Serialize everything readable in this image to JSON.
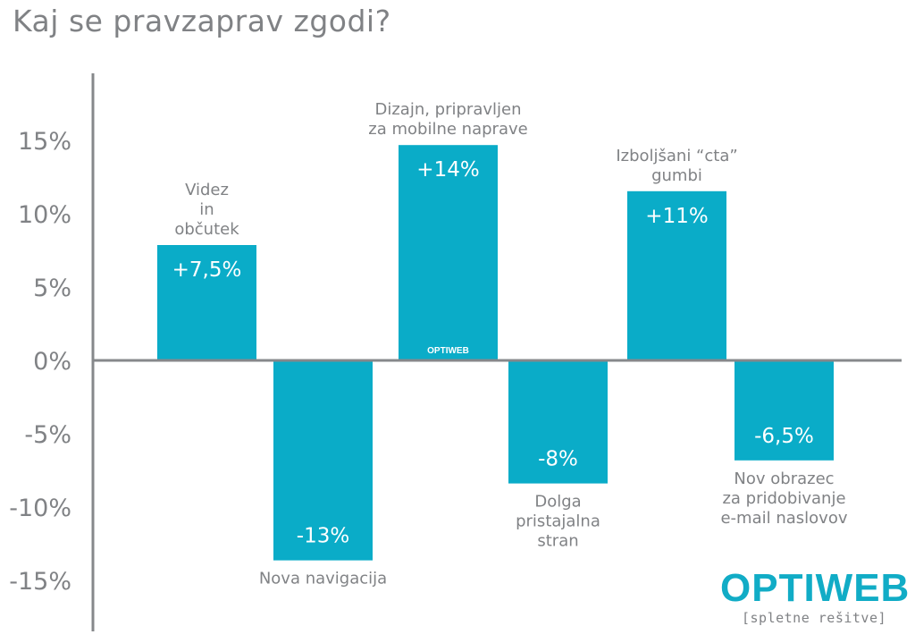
{
  "page": {
    "title": "Kaj se pravzaprav zgodi?"
  },
  "logo": {
    "name": "OPTIWEB",
    "tagline": "[spletne rešitve]",
    "watermark": "OPTIWEB"
  },
  "colors": {
    "bar": "#0aacc8",
    "text": "#808285",
    "axis": "#86888b",
    "bar_label": "#ffffff"
  },
  "chart_data": {
    "type": "bar",
    "title": "Kaj se pravzaprav zgodi?",
    "xlabel": "",
    "ylabel": "",
    "ylim": [
      -17,
      19
    ],
    "grid": false,
    "legend": "none",
    "yticks": [
      15,
      10,
      5,
      0,
      -5,
      -10,
      -15
    ],
    "ytick_labels": [
      "15%",
      "10%",
      "5%",
      "0%",
      "-5%",
      "-10%",
      "-15%"
    ],
    "categories": [
      [
        "Videz",
        "in",
        "občutek"
      ],
      [
        "Nova navigacija"
      ],
      [
        "Dizajn, pripravljen",
        "za mobilne naprave"
      ],
      [
        "Dolga",
        "pristajalna",
        "stran"
      ],
      [
        "Izboljšani “cta”",
        "gumbi"
      ],
      [
        "Nov obrazec",
        "za pridobivanje",
        "e-mail naslovov"
      ]
    ],
    "values": [
      7.5,
      -13,
      14,
      -8,
      11,
      -6.5
    ],
    "value_labels": [
      "+7,5%",
      "-13%",
      "+14%",
      "-8%",
      "+11%",
      "-6,5%"
    ]
  }
}
